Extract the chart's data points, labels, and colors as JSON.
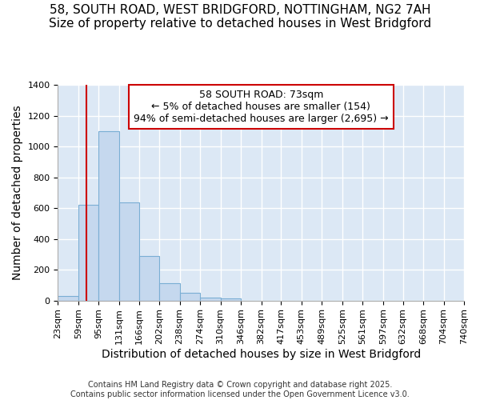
{
  "title_line1": "58, SOUTH ROAD, WEST BRIDGFORD, NOTTINGHAM, NG2 7AH",
  "title_line2": "Size of property relative to detached houses in West Bridgford",
  "xlabel": "Distribution of detached houses by size in West Bridgford",
  "ylabel": "Number of detached properties",
  "plot_bg_color": "#dce8f5",
  "fig_bg_color": "#ffffff",
  "bar_color": "#c5d8ee",
  "bar_edge_color": "#7aaed4",
  "grid_color": "#ffffff",
  "bin_edges": [
    23,
    59,
    95,
    131,
    166,
    202,
    238,
    274,
    310,
    346,
    382,
    417,
    453,
    489,
    525,
    561,
    597,
    632,
    668,
    704,
    740
  ],
  "bin_labels": [
    "23sqm",
    "59sqm",
    "95sqm",
    "131sqm",
    "166sqm",
    "202sqm",
    "238sqm",
    "274sqm",
    "310sqm",
    "346sqm",
    "382sqm",
    "417sqm",
    "453sqm",
    "489sqm",
    "525sqm",
    "561sqm",
    "597sqm",
    "632sqm",
    "668sqm",
    "704sqm",
    "740sqm"
  ],
  "bar_heights": [
    30,
    620,
    1100,
    640,
    290,
    110,
    50,
    20,
    15,
    0,
    0,
    0,
    0,
    0,
    0,
    0,
    0,
    0,
    0,
    0
  ],
  "property_size": 73,
  "property_line_color": "#cc0000",
  "ylim": [
    0,
    1400
  ],
  "yticks": [
    0,
    200,
    400,
    600,
    800,
    1000,
    1200,
    1400
  ],
  "annotation_title": "58 SOUTH ROAD: 73sqm",
  "annotation_line1": "← 5% of detached houses are smaller (154)",
  "annotation_line2": "94% of semi-detached houses are larger (2,695) →",
  "annotation_box_color": "#ffffff",
  "annotation_edge_color": "#cc0000",
  "footer_line1": "Contains HM Land Registry data © Crown copyright and database right 2025.",
  "footer_line2": "Contains public sector information licensed under the Open Government Licence v3.0.",
  "title_fontsize": 11,
  "axis_label_fontsize": 10,
  "tick_fontsize": 8,
  "annotation_fontsize": 9,
  "footer_fontsize": 7
}
